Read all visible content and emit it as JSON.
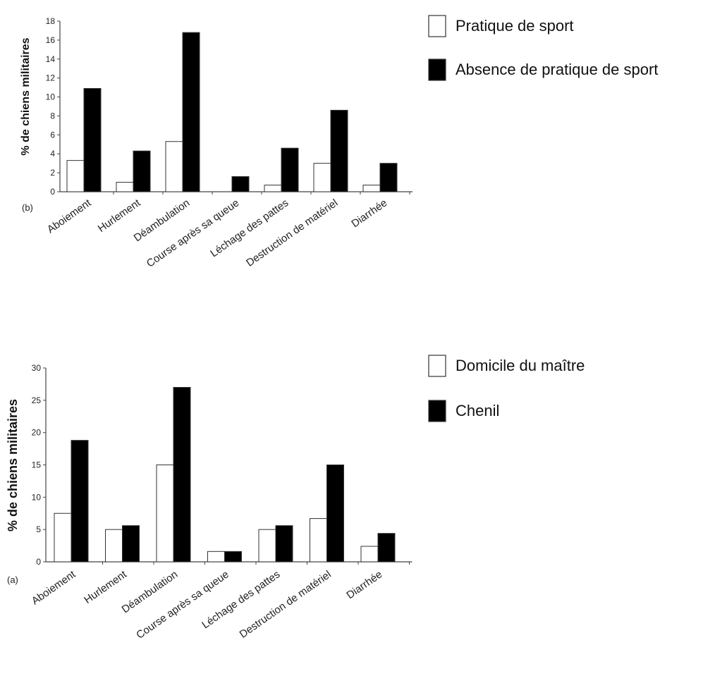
{
  "chart_data": [
    {
      "type": "bar",
      "panel_label": "(b)",
      "ylabel": "% de chiens militaires",
      "ylim": [
        0,
        18
      ],
      "yticks": [
        "0",
        "2",
        "4",
        "6",
        "8",
        "10",
        "12",
        "14",
        "16",
        "18"
      ],
      "categories": [
        "Aboiement",
        "Hurlement",
        "Déambulation",
        "Course après sa queue",
        "Léchage des pattes",
        "Destruction de matériel",
        "Diarrhée"
      ],
      "series": [
        {
          "name": "Pratique de sport",
          "color": "#ffffff",
          "values": [
            3.3,
            1.0,
            5.3,
            0,
            0.7,
            3.0,
            0.7
          ]
        },
        {
          "name": "Absence de pratique de sport",
          "color": "#000000",
          "values": [
            10.9,
            4.3,
            16.8,
            1.6,
            4.6,
            8.6,
            3.0
          ]
        }
      ],
      "legend": "right",
      "grid": false
    },
    {
      "type": "bar",
      "panel_label": "(a)",
      "ylabel": "% de chiens militaires",
      "ylim": [
        0,
        30
      ],
      "yticks": [
        "0",
        "5",
        "10",
        "15",
        "20",
        "25",
        "30"
      ],
      "categories": [
        "Aboiement",
        "Hurlement",
        "Déambulation",
        "Course après sa queue",
        "Léchage des pattes",
        "Destruction de matériel",
        "Diarrhée"
      ],
      "series": [
        {
          "name": "Domicile du maître",
          "color": "#ffffff",
          "values": [
            7.5,
            5.0,
            15.0,
            1.6,
            5.0,
            6.7,
            2.4
          ]
        },
        {
          "name": "Chenil",
          "color": "#000000",
          "values": [
            18.8,
            5.6,
            27.0,
            1.6,
            5.6,
            15.0,
            4.4
          ]
        }
      ],
      "legend": "right",
      "grid": false
    }
  ]
}
